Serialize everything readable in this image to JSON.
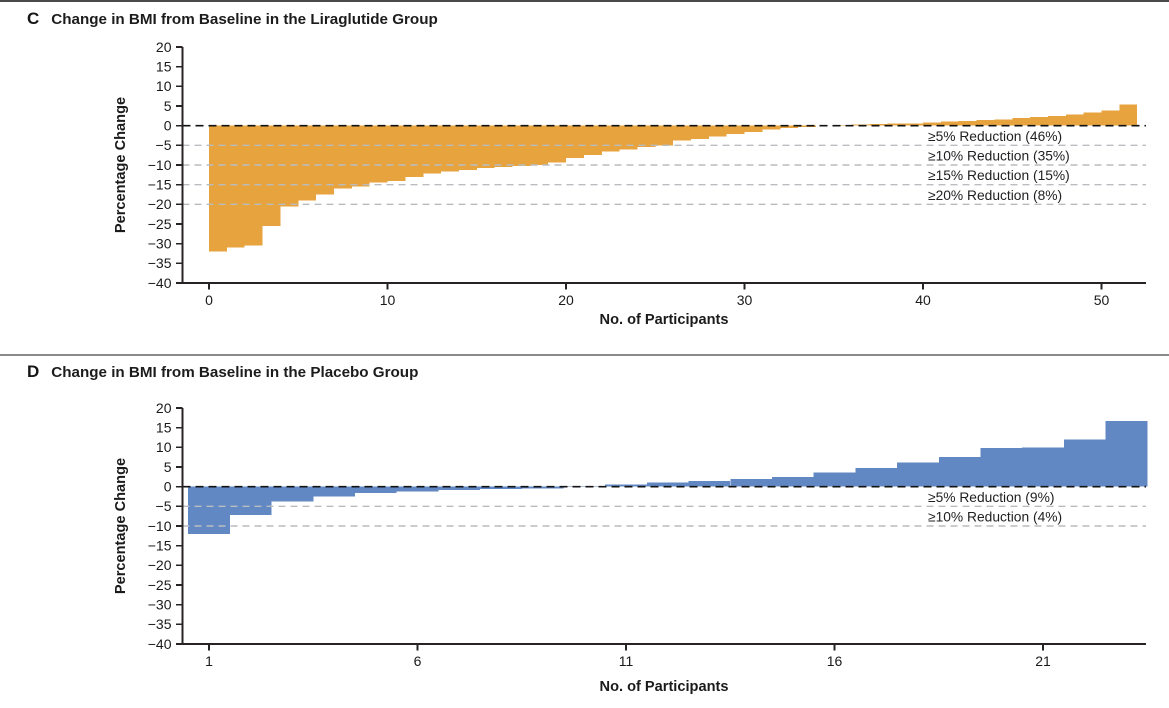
{
  "chart_data": [
    {
      "type": "bar",
      "panel_letter": "C",
      "title": "Change in BMI from Baseline in the Liraglutide Group",
      "xlabel": "No. of Participants",
      "ylabel": "Percentage Change",
      "group": "Liraglutide",
      "bar_color": "#E7A33E",
      "n_participants": 52,
      "ylim": [
        -40,
        20
      ],
      "ytick_labels": [
        "20",
        "15",
        "10",
        "5",
        "0",
        "−5",
        "−10",
        "−15",
        "−20",
        "−25",
        "−30",
        "−35",
        "−40"
      ],
      "xticks": [
        0,
        10,
        20,
        30,
        40,
        50
      ],
      "zero_line_dashed": true,
      "threshold_lines": [
        -5,
        -10,
        -15,
        -20
      ],
      "annotations": [
        {
          "text": "≥5% Reduction (46%)",
          "at_percent": -5
        },
        {
          "text": "≥10% Reduction (35%)",
          "at_percent": -10
        },
        {
          "text": "≥15% Reduction (15%)",
          "at_percent": -15
        },
        {
          "text": "≥20% Reduction (8%)",
          "at_percent": -20
        }
      ],
      "values": [
        -32,
        -31,
        -30.5,
        -25.5,
        -20.5,
        -19,
        -17.5,
        -16,
        -15.5,
        -14.5,
        -14,
        -13,
        -12.2,
        -11.7,
        -11.2,
        -10.8,
        -10.5,
        -10.2,
        -10,
        -9.3,
        -8.2,
        -7.5,
        -6.6,
        -6,
        -5.4,
        -5,
        -3.8,
        -3.4,
        -2.7,
        -2.1,
        -1.6,
        -1,
        -0.6,
        -0.3,
        0.1,
        0.2,
        0.3,
        0.4,
        0.5,
        0.6,
        0.8,
        1,
        1.2,
        1.4,
        1.6,
        1.9,
        2.2,
        2.5,
        2.9,
        3.4,
        3.9,
        5.4
      ]
    },
    {
      "type": "bar",
      "panel_letter": "D",
      "title": "Change in BMI from Baseline in the Placebo Group",
      "xlabel": "No. of Participants",
      "ylabel": "Percentage Change",
      "group": "Placebo",
      "bar_color": "#6288C4",
      "n_participants": 23,
      "ylim": [
        -40,
        20
      ],
      "ytick_labels": [
        "20",
        "15",
        "10",
        "5",
        "0",
        "−5",
        "−10",
        "−15",
        "−20",
        "−25",
        "−30",
        "−35",
        "−40"
      ],
      "xticks": [
        1,
        6,
        11,
        16,
        21
      ],
      "zero_line_dashed": true,
      "threshold_lines": [
        -5,
        -10
      ],
      "annotations": [
        {
          "text": "≥5% Reduction (9%)",
          "at_percent": -5
        },
        {
          "text": "≥10% Reduction (4%)",
          "at_percent": -10
        }
      ],
      "values": [
        -12,
        -7.2,
        -3.8,
        -2.5,
        -1.6,
        -1.2,
        -0.9,
        -0.6,
        -0.4,
        0.2,
        0.6,
        1,
        1.5,
        1.9,
        2.5,
        3.6,
        4.7,
        6.1,
        7.6,
        9.8,
        10,
        12,
        16.7
      ]
    }
  ]
}
